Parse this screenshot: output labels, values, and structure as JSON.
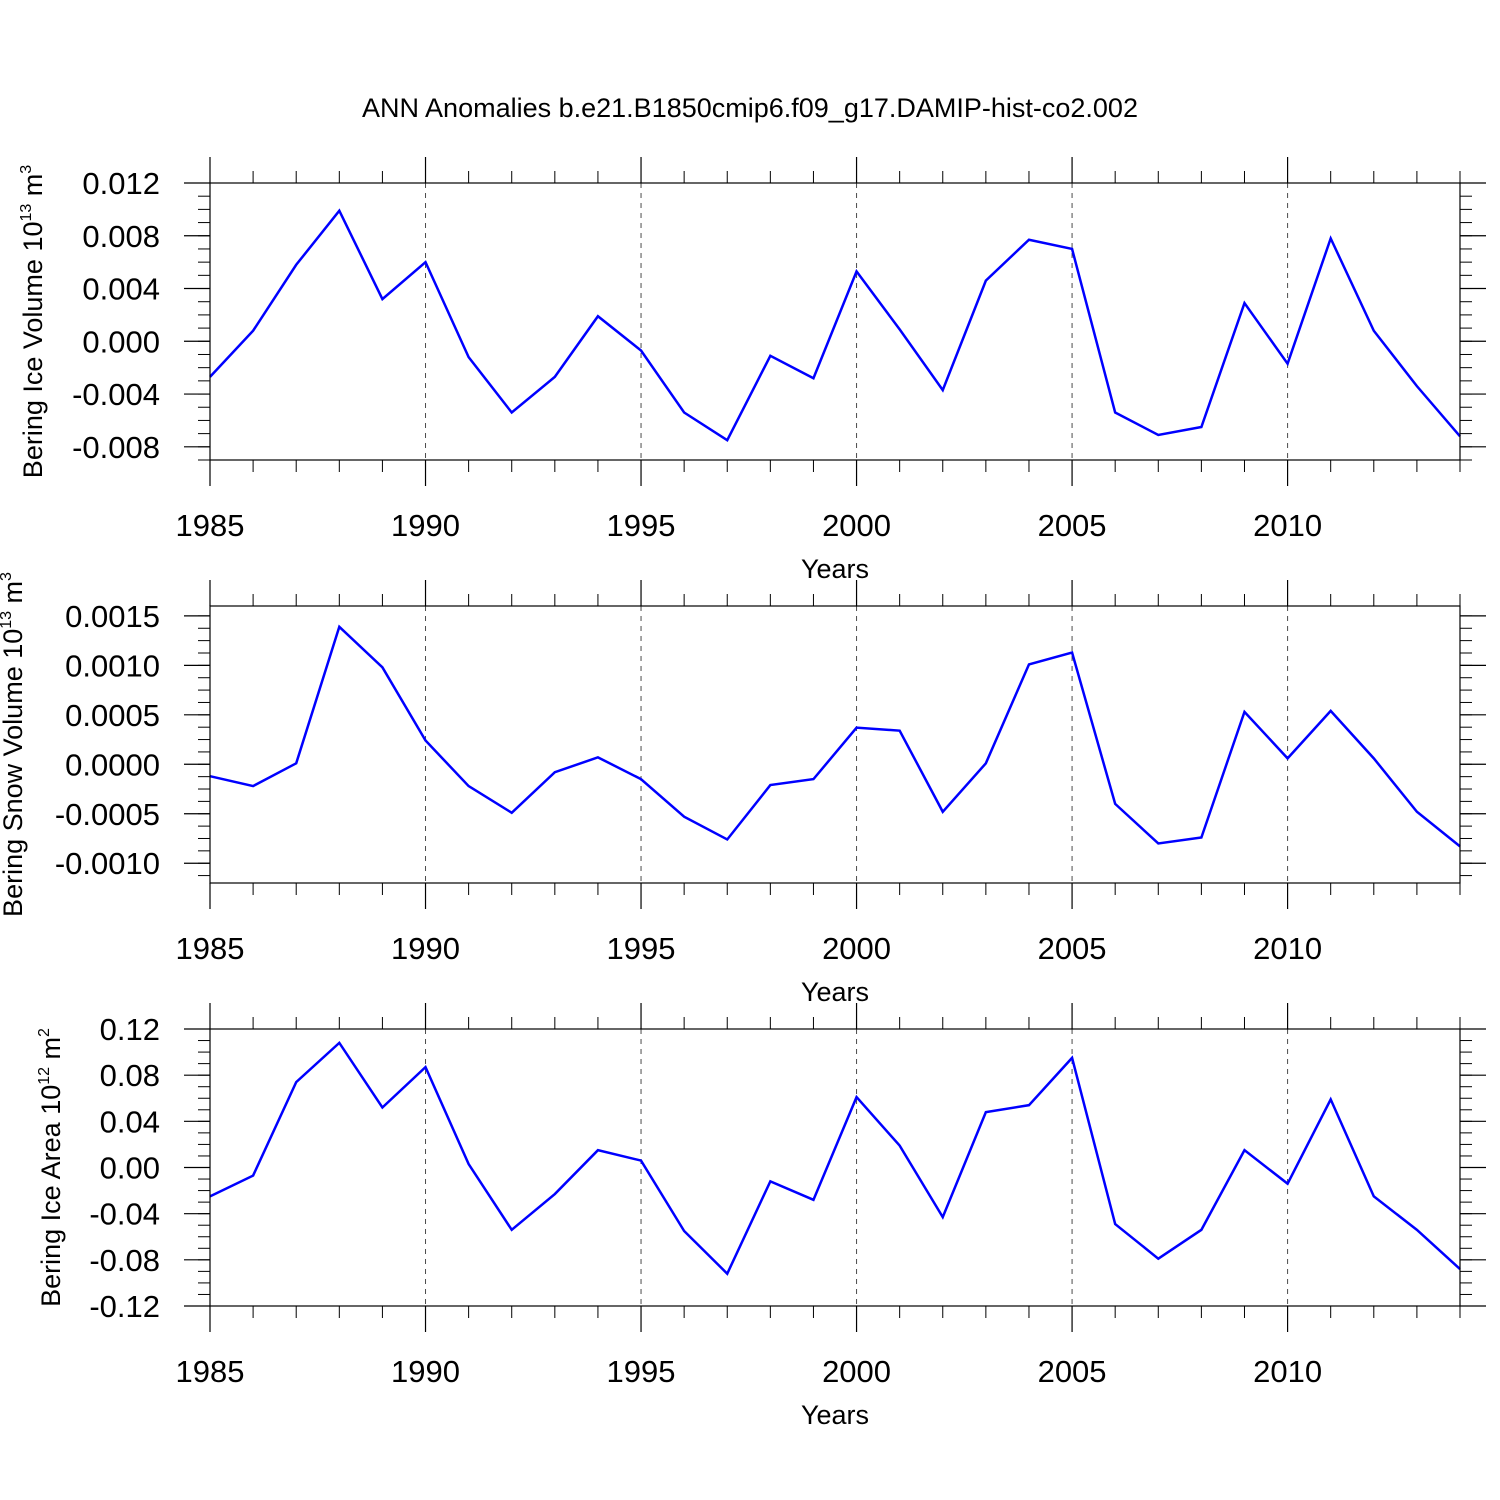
{
  "title": "ANN Anomalies b.e21.B1850cmip6.f09_g17.DAMIP-hist-co2.002",
  "colors": {
    "series": "#0000ff",
    "axis": "#000000",
    "grid": "#000000"
  },
  "chart_data": [
    {
      "type": "line",
      "ylabel": "Bering Ice Volume 10",
      "ylabel_exp": "13",
      "ylabel_unit": " m",
      "ylabel_unit_exp": "3",
      "xlabel": "Years",
      "xlim": [
        1985,
        2014
      ],
      "ylim": [
        -0.009,
        0.012
      ],
      "x_ticks": [
        1985,
        1990,
        1995,
        2000,
        2005,
        2010
      ],
      "x_tick_labels": [
        "1985",
        "1990",
        "1995",
        "2000",
        "2005",
        "2010"
      ],
      "y_ticks": [
        0.012,
        0.008,
        0.004,
        0.0,
        -0.004,
        -0.008
      ],
      "y_tick_labels": [
        "0.012",
        "0.008",
        "0.004",
        "0.000",
        "-0.004",
        "-0.008"
      ],
      "grid": "vertical dashed at major x ticks",
      "x": [
        1985,
        1986,
        1987,
        1988,
        1989,
        1990,
        1991,
        1992,
        1993,
        1994,
        1995,
        1996,
        1997,
        1998,
        1999,
        2000,
        2001,
        2002,
        2003,
        2004,
        2005,
        2006,
        2007,
        2008,
        2009,
        2010,
        2011,
        2012,
        2013,
        2014
      ],
      "values": [
        -0.0027,
        0.0008,
        0.0058,
        0.0099,
        0.0032,
        0.006,
        -0.0012,
        -0.0054,
        -0.0027,
        0.0019,
        -0.0007,
        -0.0054,
        -0.0075,
        -0.0011,
        -0.0028,
        0.0053,
        0.0009,
        -0.0037,
        0.0046,
        0.0077,
        0.007,
        -0.0054,
        -0.0071,
        -0.0065,
        0.0029,
        -0.0017,
        0.0078,
        0.0008,
        -0.0034,
        -0.0072
      ]
    },
    {
      "type": "line",
      "ylabel": "Bering Snow Volume 10",
      "ylabel_exp": "13",
      "ylabel_unit": " m",
      "ylabel_unit_exp": "3",
      "xlabel": "Years",
      "xlim": [
        1985,
        2014
      ],
      "ylim": [
        -0.0012,
        0.0016
      ],
      "x_ticks": [
        1985,
        1990,
        1995,
        2000,
        2005,
        2010
      ],
      "x_tick_labels": [
        "1985",
        "1990",
        "1995",
        "2000",
        "2005",
        "2010"
      ],
      "y_ticks": [
        0.0015,
        0.001,
        0.0005,
        0.0,
        -0.0005,
        -0.001
      ],
      "y_tick_labels": [
        "0.0015",
        "0.0010",
        "0.0005",
        "0.0000",
        "-0.0005",
        "-0.0010"
      ],
      "grid": "vertical dashed at major x ticks",
      "x": [
        1985,
        1986,
        1987,
        1988,
        1989,
        1990,
        1991,
        1992,
        1993,
        1994,
        1995,
        1996,
        1997,
        1998,
        1999,
        2000,
        2001,
        2002,
        2003,
        2004,
        2005,
        2006,
        2007,
        2008,
        2009,
        2010,
        2011,
        2012,
        2013,
        2014
      ],
      "values": [
        -0.00012,
        -0.00022,
        1e-05,
        0.00139,
        0.00098,
        0.00024,
        -0.00022,
        -0.00049,
        -8e-05,
        7e-05,
        -0.00015,
        -0.00053,
        -0.00076,
        -0.00021,
        -0.00015,
        0.00037,
        0.00034,
        -0.00048,
        1e-05,
        0.00101,
        0.00113,
        -0.0004,
        -0.0008,
        -0.00074,
        0.00053,
        6e-05,
        0.00054,
        6e-05,
        -0.00048,
        -0.00083
      ]
    },
    {
      "type": "line",
      "ylabel": "Bering Ice Area 10",
      "ylabel_exp": "12",
      "ylabel_unit": " m",
      "ylabel_unit_exp": "2",
      "xlabel": "Years",
      "xlim": [
        1985,
        2014
      ],
      "ylim": [
        -0.12,
        0.12
      ],
      "x_ticks": [
        1985,
        1990,
        1995,
        2000,
        2005,
        2010
      ],
      "x_tick_labels": [
        "1985",
        "1990",
        "1995",
        "2000",
        "2005",
        "2010"
      ],
      "y_ticks": [
        0.12,
        0.08,
        0.04,
        0.0,
        -0.04,
        -0.08,
        -0.12
      ],
      "y_tick_labels": [
        "0.12",
        "0.08",
        "0.04",
        "0.00",
        "-0.04",
        "-0.08",
        "-0.12"
      ],
      "grid": "vertical dashed at major x ticks",
      "x": [
        1985,
        1986,
        1987,
        1988,
        1989,
        1990,
        1991,
        1992,
        1993,
        1994,
        1995,
        1996,
        1997,
        1998,
        1999,
        2000,
        2001,
        2002,
        2003,
        2004,
        2005,
        2006,
        2007,
        2008,
        2009,
        2010,
        2011,
        2012,
        2013,
        2014
      ],
      "values": [
        -0.025,
        -0.007,
        0.074,
        0.108,
        0.052,
        0.087,
        0.003,
        -0.054,
        -0.023,
        0.015,
        0.006,
        -0.055,
        -0.092,
        -0.012,
        -0.028,
        0.061,
        0.019,
        -0.043,
        0.048,
        0.054,
        0.095,
        -0.049,
        -0.079,
        -0.054,
        0.015,
        -0.014,
        0.059,
        -0.025,
        -0.054,
        -0.088
      ]
    }
  ]
}
